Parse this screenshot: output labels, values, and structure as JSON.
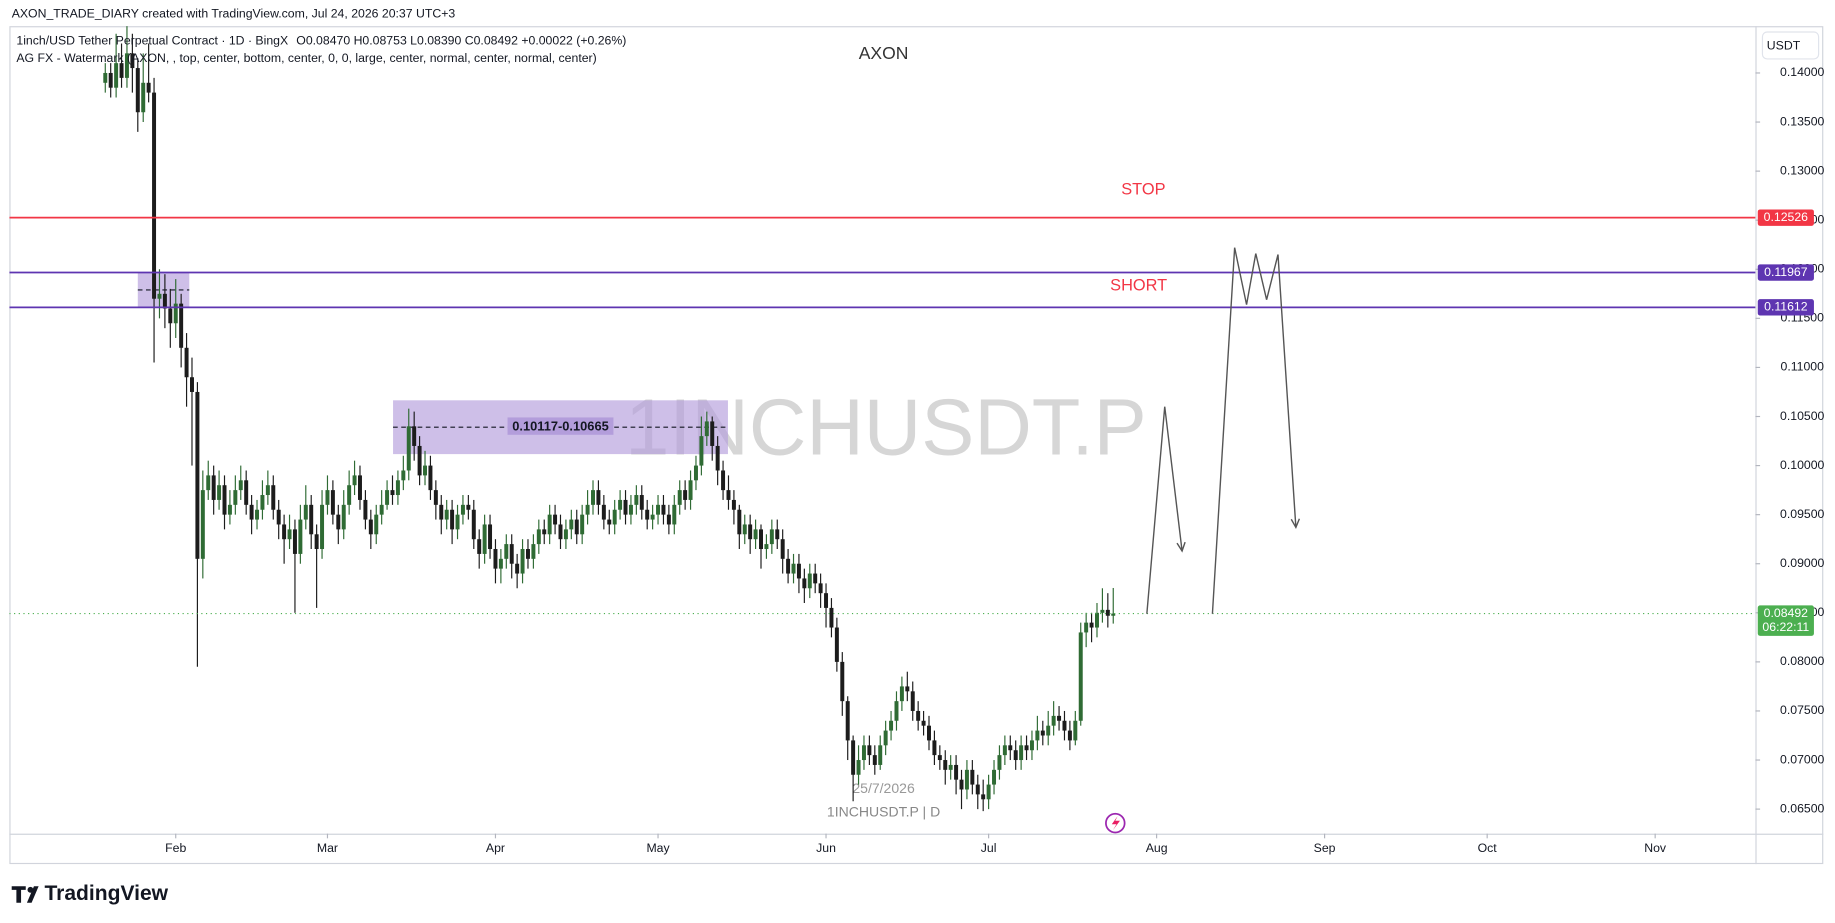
{
  "header": {
    "attribution": "AXON_TRADE_DIARY created with TradingView.com, Jul 24, 2026 20:37 UTC+3"
  },
  "legend": {
    "symbol": "1inch/USD Tether Perpetual Contract · 1D · BingX",
    "ohlc": "O0.08470 H0.08753 L0.08390 C0.08492 +0.00022 (+0.26%)",
    "indicator": "AG FX - Watermark (AXON, , top, center, bottom, center, 0, 0, large, center, normal, center, normal, center)"
  },
  "watermark": {
    "title": "AXON",
    "symbol": "1INCHUSDT.P",
    "date": "25/7/2026",
    "caption": "1INCHUSDT.P | D"
  },
  "annotations": {
    "stop": "STOP",
    "short": "SHORT"
  },
  "currency": "USDT",
  "footer": {
    "logo": "TradingView"
  },
  "chart_data": {
    "type": "candlestick",
    "up_color": "#2f6b34",
    "down_color": "#1c1c1c",
    "grid": false,
    "xlim": [
      -17.7,
      304.5
    ],
    "xticks": [
      {
        "value": 13,
        "label": "Feb"
      },
      {
        "value": 41,
        "label": "Mar"
      },
      {
        "value": 72,
        "label": "Apr"
      },
      {
        "value": 102,
        "label": "May"
      },
      {
        "value": 133,
        "label": "Jun"
      },
      {
        "value": 163,
        "label": "Jul"
      },
      {
        "value": 194,
        "label": "Aug"
      },
      {
        "value": 225,
        "label": "Sep"
      },
      {
        "value": 255,
        "label": "Oct"
      },
      {
        "value": 286,
        "label": "Nov"
      }
    ],
    "ylim": [
      0.0625,
      0.14477
    ],
    "yticks": [
      {
        "value": 0.065,
        "label": "0.06500"
      },
      {
        "value": 0.07,
        "label": "0.07000"
      },
      {
        "value": 0.075,
        "label": "0.07500"
      },
      {
        "value": 0.08,
        "label": "0.08000"
      },
      {
        "value": 0.085,
        "label": "0.08500"
      },
      {
        "value": 0.09,
        "label": "0.09000"
      },
      {
        "value": 0.095,
        "label": "0.09500"
      },
      {
        "value": 0.1,
        "label": "0.10000"
      },
      {
        "value": 0.105,
        "label": "0.10500"
      },
      {
        "value": 0.11,
        "label": "0.11000"
      },
      {
        "value": 0.115,
        "label": "0.11500"
      },
      {
        "value": 0.12,
        "label": "0.12000"
      },
      {
        "value": 0.125,
        "label": "0.12500"
      },
      {
        "value": 0.13,
        "label": "0.13000"
      },
      {
        "value": 0.135,
        "label": "0.13500"
      },
      {
        "value": 0.14,
        "label": "0.14000"
      }
    ],
    "open": [
      0.139,
      0.14,
      0.1385,
      0.141,
      0.1395,
      0.142,
      0.1405,
      0.136,
      0.139,
      0.138,
      0.117,
      0.1175,
      0.116,
      0.1145,
      0.1165,
      0.112,
      0.109,
      0.1075,
      0.0905,
      0.0975,
      0.099,
      0.0965,
      0.098,
      0.095,
      0.096,
      0.0975,
      0.0985,
      0.096,
      0.0945,
      0.0955,
      0.097,
      0.098,
      0.0955,
      0.094,
      0.0925,
      0.0935,
      0.091,
      0.0945,
      0.096,
      0.093,
      0.0915,
      0.096,
      0.0975,
      0.095,
      0.0935,
      0.096,
      0.098,
      0.099,
      0.0965,
      0.0945,
      0.093,
      0.095,
      0.096,
      0.0975,
      0.097,
      0.0985,
      0.0995,
      0.104,
      0.102,
      0.099,
      0.1,
      0.0975,
      0.096,
      0.0945,
      0.0955,
      0.0935,
      0.095,
      0.096,
      0.0955,
      0.0925,
      0.091,
      0.094,
      0.0915,
      0.0895,
      0.0905,
      0.092,
      0.09,
      0.089,
      0.0915,
      0.0905,
      0.092,
      0.0935,
      0.093,
      0.095,
      0.094,
      0.0925,
      0.0935,
      0.0945,
      0.093,
      0.095,
      0.096,
      0.0975,
      0.096,
      0.0945,
      0.094,
      0.0955,
      0.0965,
      0.095,
      0.096,
      0.097,
      0.0955,
      0.0945,
      0.095,
      0.096,
      0.095,
      0.094,
      0.096,
      0.0975,
      0.0965,
      0.0985,
      0.1,
      0.103,
      0.1045,
      0.102,
      0.0995,
      0.0975,
      0.0965,
      0.0955,
      0.093,
      0.094,
      0.0925,
      0.0935,
      0.0915,
      0.092,
      0.0935,
      0.0925,
      0.0905,
      0.089,
      0.09,
      0.0885,
      0.0875,
      0.089,
      0.088,
      0.087,
      0.0855,
      0.0835,
      0.08,
      0.076,
      0.072,
      0.0685,
      0.07,
      0.0715,
      0.0705,
      0.0695,
      0.0715,
      0.073,
      0.074,
      0.076,
      0.0775,
      0.077,
      0.075,
      0.074,
      0.0735,
      0.072,
      0.0705,
      0.07,
      0.069,
      0.0695,
      0.068,
      0.067,
      0.069,
      0.0675,
      0.0665,
      0.066,
      0.0675,
      0.069,
      0.0705,
      0.0715,
      0.071,
      0.07,
      0.0715,
      0.071,
      0.072,
      0.073,
      0.0725,
      0.0735,
      0.0745,
      0.074,
      0.073,
      0.072,
      0.074,
      0.083,
      0.084,
      0.0835,
      0.085,
      0.0853,
      0.0847
    ],
    "high": [
      0.141,
      0.141,
      0.144,
      0.143,
      0.145,
      0.144,
      0.1415,
      0.142,
      0.143,
      0.1395,
      0.12,
      0.1195,
      0.118,
      0.119,
      0.1175,
      0.1135,
      0.111,
      0.1085,
      0.0995,
      0.1005,
      0.1,
      0.0995,
      0.099,
      0.0975,
      0.099,
      0.1,
      0.0995,
      0.097,
      0.0965,
      0.0985,
      0.0995,
      0.099,
      0.0965,
      0.095,
      0.095,
      0.0945,
      0.096,
      0.098,
      0.097,
      0.094,
      0.0975,
      0.099,
      0.0985,
      0.096,
      0.0975,
      0.0995,
      0.1005,
      0.1,
      0.0975,
      0.0955,
      0.096,
      0.0975,
      0.0985,
      0.099,
      0.0995,
      0.101,
      0.1058,
      0.1055,
      0.103,
      0.1015,
      0.101,
      0.0985,
      0.097,
      0.0965,
      0.0965,
      0.096,
      0.097,
      0.097,
      0.0965,
      0.0935,
      0.095,
      0.095,
      0.0925,
      0.0915,
      0.093,
      0.093,
      0.091,
      0.0925,
      0.0925,
      0.093,
      0.0945,
      0.0945,
      0.096,
      0.096,
      0.095,
      0.0945,
      0.0955,
      0.0955,
      0.096,
      0.0975,
      0.0985,
      0.0985,
      0.097,
      0.0955,
      0.0965,
      0.0975,
      0.0975,
      0.097,
      0.098,
      0.098,
      0.0965,
      0.096,
      0.097,
      0.097,
      0.096,
      0.097,
      0.0985,
      0.0985,
      0.0995,
      0.101,
      0.105,
      0.1055,
      0.105,
      0.103,
      0.1005,
      0.099,
      0.0975,
      0.096,
      0.095,
      0.095,
      0.0945,
      0.094,
      0.093,
      0.0945,
      0.0945,
      0.0935,
      0.0915,
      0.091,
      0.091,
      0.0895,
      0.09,
      0.09,
      0.089,
      0.088,
      0.0865,
      0.0845,
      0.081,
      0.0765,
      0.0725,
      0.0715,
      0.0725,
      0.0725,
      0.0715,
      0.0725,
      0.074,
      0.075,
      0.077,
      0.0785,
      0.079,
      0.078,
      0.076,
      0.075,
      0.0745,
      0.073,
      0.0715,
      0.071,
      0.0705,
      0.0705,
      0.069,
      0.07,
      0.07,
      0.0685,
      0.068,
      0.0685,
      0.07,
      0.0715,
      0.0725,
      0.0725,
      0.072,
      0.0725,
      0.0725,
      0.073,
      0.0745,
      0.074,
      0.075,
      0.076,
      0.0755,
      0.075,
      0.074,
      0.075,
      0.084,
      0.085,
      0.085,
      0.086,
      0.0875,
      0.087,
      0.08753
    ],
    "low": [
      0.138,
      0.1375,
      0.1375,
      0.1385,
      0.1385,
      0.138,
      0.134,
      0.135,
      0.137,
      0.1105,
      0.115,
      0.114,
      0.112,
      0.113,
      0.11,
      0.106,
      0.1,
      0.0795,
      0.0885,
      0.0965,
      0.095,
      0.0955,
      0.0935,
      0.094,
      0.095,
      0.0965,
      0.095,
      0.093,
      0.0935,
      0.0945,
      0.096,
      0.0945,
      0.0925,
      0.09,
      0.0915,
      0.085,
      0.09,
      0.0935,
      0.0915,
      0.0855,
      0.0905,
      0.095,
      0.094,
      0.092,
      0.0925,
      0.095,
      0.097,
      0.0955,
      0.0935,
      0.0915,
      0.092,
      0.094,
      0.0955,
      0.096,
      0.096,
      0.0975,
      0.0985,
      0.1005,
      0.098,
      0.098,
      0.0965,
      0.0945,
      0.093,
      0.0935,
      0.092,
      0.0925,
      0.094,
      0.0945,
      0.0915,
      0.0895,
      0.09,
      0.0905,
      0.088,
      0.088,
      0.0895,
      0.0885,
      0.0875,
      0.088,
      0.0895,
      0.0895,
      0.091,
      0.092,
      0.092,
      0.093,
      0.0915,
      0.0915,
      0.0925,
      0.092,
      0.092,
      0.094,
      0.095,
      0.095,
      0.0935,
      0.093,
      0.093,
      0.0945,
      0.094,
      0.094,
      0.095,
      0.0945,
      0.0935,
      0.0935,
      0.094,
      0.094,
      0.093,
      0.093,
      0.095,
      0.0955,
      0.0955,
      0.0975,
      0.099,
      0.102,
      0.1005,
      0.098,
      0.0965,
      0.0955,
      0.094,
      0.0915,
      0.092,
      0.091,
      0.0915,
      0.0895,
      0.0905,
      0.091,
      0.0915,
      0.089,
      0.088,
      0.088,
      0.087,
      0.086,
      0.0865,
      0.087,
      0.0855,
      0.0835,
      0.0825,
      0.079,
      0.0745,
      0.07,
      0.0658,
      0.0675,
      0.069,
      0.0695,
      0.0685,
      0.069,
      0.0705,
      0.072,
      0.073,
      0.075,
      0.076,
      0.074,
      0.073,
      0.0725,
      0.071,
      0.0695,
      0.069,
      0.0675,
      0.068,
      0.0665,
      0.065,
      0.066,
      0.0665,
      0.065,
      0.0648,
      0.065,
      0.0665,
      0.068,
      0.0695,
      0.07,
      0.069,
      0.069,
      0.07,
      0.07,
      0.071,
      0.0715,
      0.0715,
      0.0725,
      0.073,
      0.072,
      0.071,
      0.0715,
      0.0735,
      0.0815,
      0.082,
      0.0825,
      0.084,
      0.0835,
      0.0839
    ],
    "close": [
      0.14,
      0.1385,
      0.141,
      0.1395,
      0.142,
      0.1405,
      0.136,
      0.139,
      0.138,
      0.117,
      0.1175,
      0.116,
      0.1145,
      0.1165,
      0.112,
      0.109,
      0.1075,
      0.0905,
      0.0975,
      0.099,
      0.0965,
      0.098,
      0.095,
      0.096,
      0.0975,
      0.0985,
      0.096,
      0.0945,
      0.0955,
      0.097,
      0.098,
      0.0955,
      0.094,
      0.0925,
      0.0935,
      0.091,
      0.0945,
      0.096,
      0.093,
      0.0915,
      0.096,
      0.0975,
      0.095,
      0.0935,
      0.096,
      0.098,
      0.099,
      0.0965,
      0.0945,
      0.093,
      0.095,
      0.096,
      0.0975,
      0.097,
      0.0985,
      0.0995,
      0.104,
      0.102,
      0.099,
      0.1,
      0.0975,
      0.096,
      0.0945,
      0.0955,
      0.0935,
      0.095,
      0.096,
      0.0955,
      0.0925,
      0.091,
      0.094,
      0.0915,
      0.0895,
      0.0905,
      0.092,
      0.09,
      0.089,
      0.0915,
      0.0905,
      0.092,
      0.0935,
      0.093,
      0.095,
      0.094,
      0.0925,
      0.0935,
      0.0945,
      0.093,
      0.095,
      0.096,
      0.0975,
      0.096,
      0.0945,
      0.094,
      0.0955,
      0.0965,
      0.095,
      0.096,
      0.097,
      0.0955,
      0.0945,
      0.095,
      0.096,
      0.095,
      0.094,
      0.096,
      0.0975,
      0.0965,
      0.0985,
      0.1,
      0.103,
      0.1045,
      0.102,
      0.0995,
      0.0975,
      0.0965,
      0.0955,
      0.093,
      0.094,
      0.0925,
      0.0935,
      0.0915,
      0.092,
      0.0935,
      0.0925,
      0.0905,
      0.089,
      0.09,
      0.0885,
      0.0875,
      0.089,
      0.088,
      0.087,
      0.0855,
      0.0835,
      0.08,
      0.076,
      0.072,
      0.0685,
      0.07,
      0.0715,
      0.0705,
      0.0695,
      0.0715,
      0.073,
      0.074,
      0.076,
      0.0775,
      0.077,
      0.075,
      0.074,
      0.0735,
      0.072,
      0.0705,
      0.07,
      0.069,
      0.0695,
      0.068,
      0.067,
      0.069,
      0.0675,
      0.0665,
      0.066,
      0.0675,
      0.069,
      0.0705,
      0.0715,
      0.071,
      0.07,
      0.0715,
      0.071,
      0.072,
      0.073,
      0.0725,
      0.0735,
      0.0745,
      0.074,
      0.073,
      0.072,
      0.074,
      0.083,
      0.084,
      0.0835,
      0.085,
      0.0853,
      0.0847,
      0.08492
    ],
    "countdown": "06:22:11",
    "last_color": "#4caf50",
    "hlines": [
      {
        "value": 0.12526,
        "color": "#f23645"
      },
      {
        "value": 0.11967,
        "color": "#5e35b1"
      },
      {
        "value": 0.11612,
        "color": "#5e35b1"
      }
    ],
    "zones": [
      {
        "low": 0.11612,
        "high": 0.11967,
        "x0": 6,
        "x1": 15.5,
        "color": "#b39ddb"
      },
      {
        "low": 0.10117,
        "high": 0.10665,
        "x0": 53.1,
        "x1": 114.9,
        "color": "#b39ddb",
        "label": "0.10117-0.10665"
      }
    ],
    "paths": [
      {
        "x": [
          192.2,
          195.5,
          198.7
        ],
        "y": [
          0.0849,
          0.106,
          0.0913
        ],
        "color": "#555555"
      },
      {
        "x": [
          204.3,
          208.4,
          210.6,
          212.3,
          214.3,
          216.4,
          219.7
        ],
        "y": [
          0.0849,
          0.1222,
          0.1164,
          0.1216,
          0.1169,
          0.1215,
          0.0937
        ],
        "color": "#555555"
      }
    ]
  }
}
